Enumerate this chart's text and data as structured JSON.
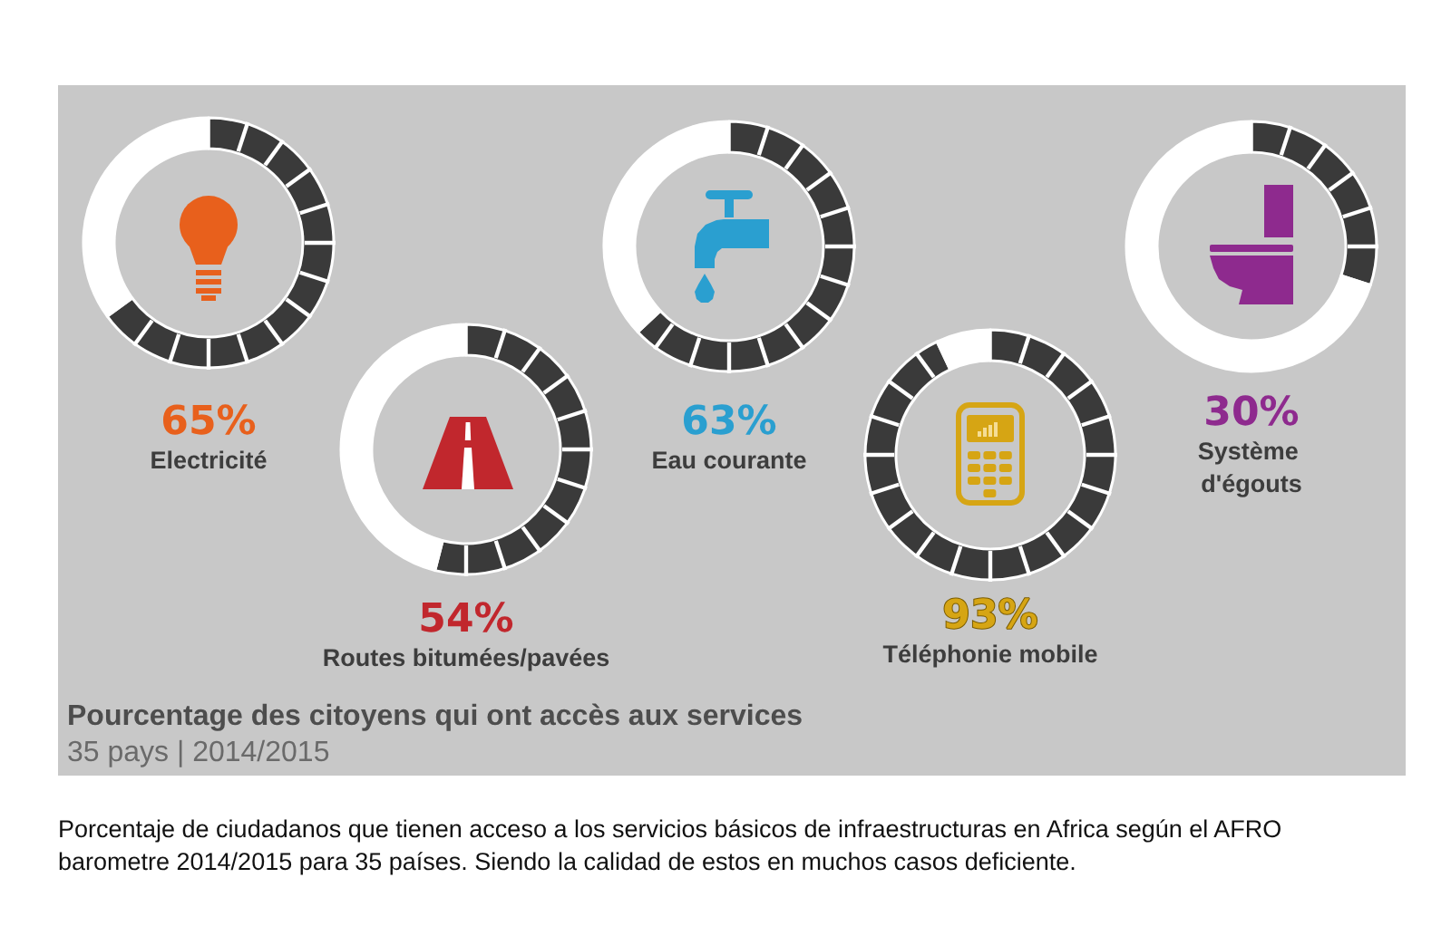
{
  "chart_data": [
    {
      "type": "donut",
      "title": "65%",
      "subtitle": "Electricité",
      "categories": [
        null,
        null
      ],
      "values": [
        65,
        35
      ],
      "colors": [
        "#3a3a3a",
        "#ffffff"
      ]
    },
    {
      "type": "donut",
      "title": "54%",
      "subtitle": "Routes bitumées/pavées",
      "categories": [
        null,
        null
      ],
      "values": [
        54,
        46
      ],
      "colors": [
        "#3a3a3a",
        "#ffffff"
      ]
    },
    {
      "type": "donut",
      "title": "63%",
      "subtitle": "Eau courante",
      "categories": [
        null,
        null
      ],
      "values": [
        63,
        37
      ],
      "colors": [
        "#3a3a3a",
        "#ffffff"
      ]
    },
    {
      "type": "donut",
      "title": "93%",
      "subtitle": "Téléphonie mobile",
      "categories": [
        null,
        null
      ],
      "values": [
        93,
        7
      ],
      "colors": [
        "#3a3a3a",
        "#ffffff"
      ]
    },
    {
      "type": "donut",
      "title": "30%",
      "subtitle": "Système d'égouts",
      "categories": [
        null,
        null
      ],
      "values": [
        30,
        70
      ],
      "colors": [
        "#3a3a3a",
        "#ffffff"
      ]
    },
    {
      "type": "other",
      "title": "Pourcentage des citoyens qui ont accès aux services",
      "subtitle": "35 pays | 2014/2015",
      "annotations": [
        "Porcentaje de ciudadanos que tienen acceso a los servicios básicos de infraestructuras en Africa según el AFRO barometre 2014/2015 para 35 países. Siendo la calidad de estos en muchos casos deficiente."
      ]
    }
  ]
}
